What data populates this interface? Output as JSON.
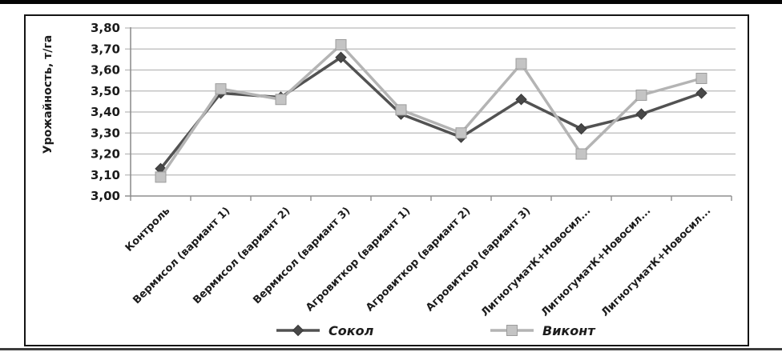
{
  "chart_data": {
    "type": "line",
    "title": "",
    "xlabel": "",
    "ylabel": "Урожайность, т/га",
    "categories": [
      "Контроль",
      "Вермисол (вариант 1)",
      "Вермисол (вариант 2)",
      "Вермисол (вариант 3)",
      "Агровиткор (вариант 1)",
      "Агровиткор (вариант 2)",
      "Агровиткор (вариант 3)",
      "ЛигногуматК+Новосил...",
      "ЛигногуматК+Новосил...",
      "ЛигногуматК+Новосил..."
    ],
    "series": [
      {
        "name": "Сокол",
        "marker": "diamond",
        "line_color": "#525252",
        "marker_fill": "#484848",
        "marker_stroke": "#383838",
        "values": [
          3.13,
          3.49,
          3.47,
          3.66,
          3.39,
          3.28,
          3.46,
          3.32,
          3.39,
          3.49
        ]
      },
      {
        "name": "Виконт",
        "marker": "square",
        "line_color": "#b4b4b4",
        "marker_fill": "#c4c4c4",
        "marker_stroke": "#9c9c9c",
        "values": [
          3.09,
          3.51,
          3.46,
          3.72,
          3.41,
          3.3,
          3.63,
          3.2,
          3.48,
          3.56
        ]
      }
    ],
    "ylim": [
      3.0,
      3.8
    ],
    "ytick_step": 0.1,
    "ytick_labels": [
      "3,00",
      "3,10",
      "3,20",
      "3,30",
      "3,40",
      "3,50",
      "3,60",
      "3,70",
      "3,80"
    ],
    "grid": true,
    "legend_position": "bottom",
    "colors": {
      "grid": "#b9b9b9",
      "axis": "#8f8f8f",
      "text": "#1c1c1c",
      "frame": "#141414"
    }
  }
}
